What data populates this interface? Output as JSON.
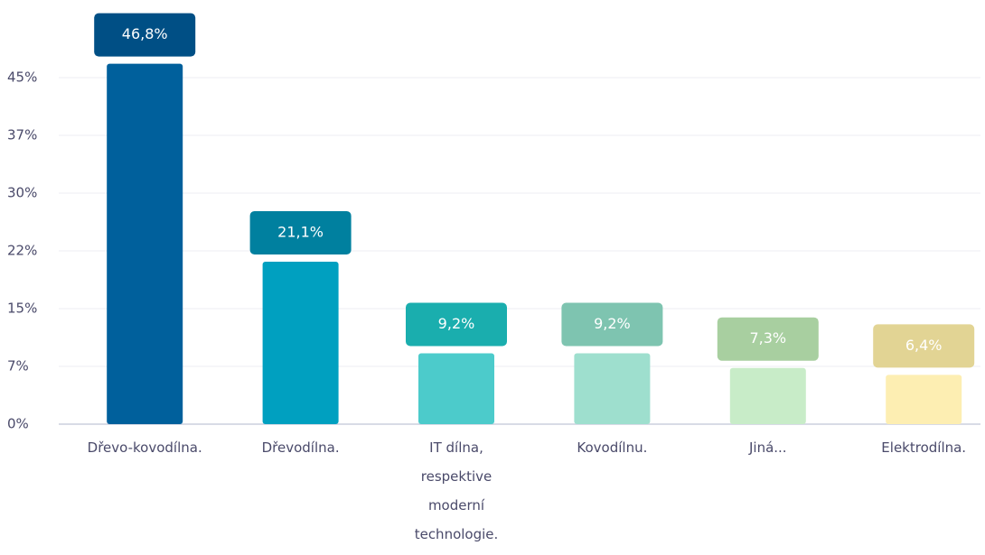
{
  "chart_data": {
    "type": "bar",
    "categories": [
      "Dřevo-kovodílna.",
      "Dřevodílna.",
      "IT dílna, respektive moderní technologie.",
      "Kovodílnu.",
      "Jiná...",
      "Elektrodílna."
    ],
    "values": [
      46.8,
      21.1,
      9.2,
      9.2,
      7.3,
      6.4
    ],
    "value_labels": [
      "46,8%",
      "21,1%",
      "9,2%",
      "9,2%",
      "7,3%",
      "6,4%"
    ],
    "colors": [
      "#00609c",
      "#00a0c0",
      "#4ccbcb",
      "#9edfce",
      "#c8ecc8",
      "#fdeeb2"
    ],
    "label_colors": [
      "#004f85",
      "#00809f",
      "#1aaeae",
      "#7ec4b0",
      "#a8cfa0",
      "#e2d494"
    ],
    "ylim": [
      0,
      52.5
    ],
    "yticks": [
      {
        "value": 0,
        "label": "0%"
      },
      {
        "value": 7.5,
        "label": "7%"
      },
      {
        "value": 15,
        "label": "15%"
      },
      {
        "value": 22.5,
        "label": "22%"
      },
      {
        "value": 30,
        "label": "30%"
      },
      {
        "value": 37.5,
        "label": "37%"
      },
      {
        "value": 45,
        "label": "45%"
      }
    ],
    "grid": true
  }
}
